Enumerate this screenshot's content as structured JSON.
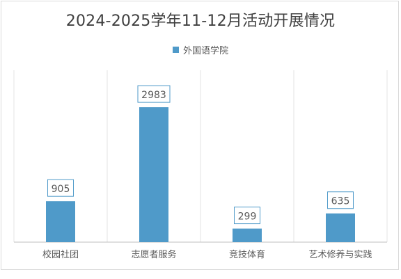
{
  "chart_data": {
    "type": "bar",
    "title": "2024-2025学年11-12月活动开展情况",
    "categories": [
      "校园社团",
      "志愿者服务",
      "竞技体育",
      "艺术修养与实践"
    ],
    "series": [
      {
        "name": "外国语学院",
        "values": [
          905,
          2983,
          299,
          635
        ],
        "color": "#4f9ac9"
      }
    ],
    "ylim": [
      0,
      3800
    ],
    "grid": false,
    "legend": "top",
    "data_labels": true
  }
}
